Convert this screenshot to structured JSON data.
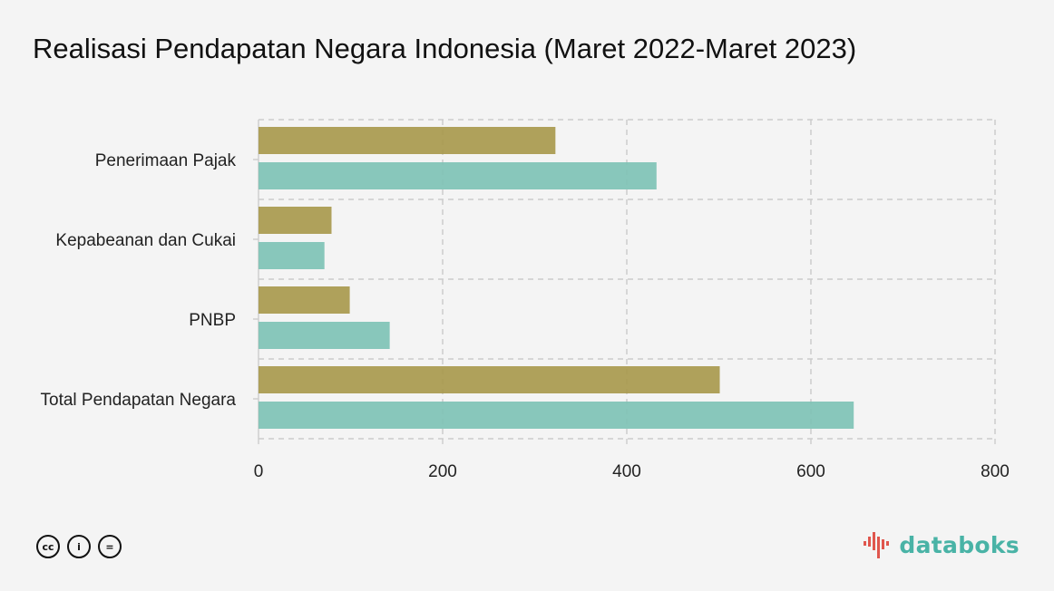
{
  "title": "Realisasi Pendapatan Negara Indonesia (Maret 2022-Maret 2023)",
  "chart_data": {
    "type": "bar",
    "orientation": "horizontal",
    "categories": [
      "Penerimaan Pajak",
      "Kepabeanan dan Cukai",
      "PNBP",
      "Total Pendapatan Negara"
    ],
    "series": [
      {
        "color": "#a99a4f",
        "values": [
          322.5,
          79.3,
          99.1,
          501.0
        ]
      },
      {
        "color": "#7fc3b6",
        "values": [
          432.3,
          71.6,
          142.5,
          646.5
        ]
      }
    ],
    "xlim": [
      0,
      800
    ],
    "xticks": [
      0,
      200,
      400,
      600,
      800
    ],
    "grid": true
  },
  "footer": {
    "license_icons": [
      "cc-icon",
      "by-icon",
      "nd-icon"
    ],
    "license_glyphs": [
      "cc",
      "i",
      "="
    ],
    "brand": "databoks",
    "brand_color": "#49b3a6"
  }
}
